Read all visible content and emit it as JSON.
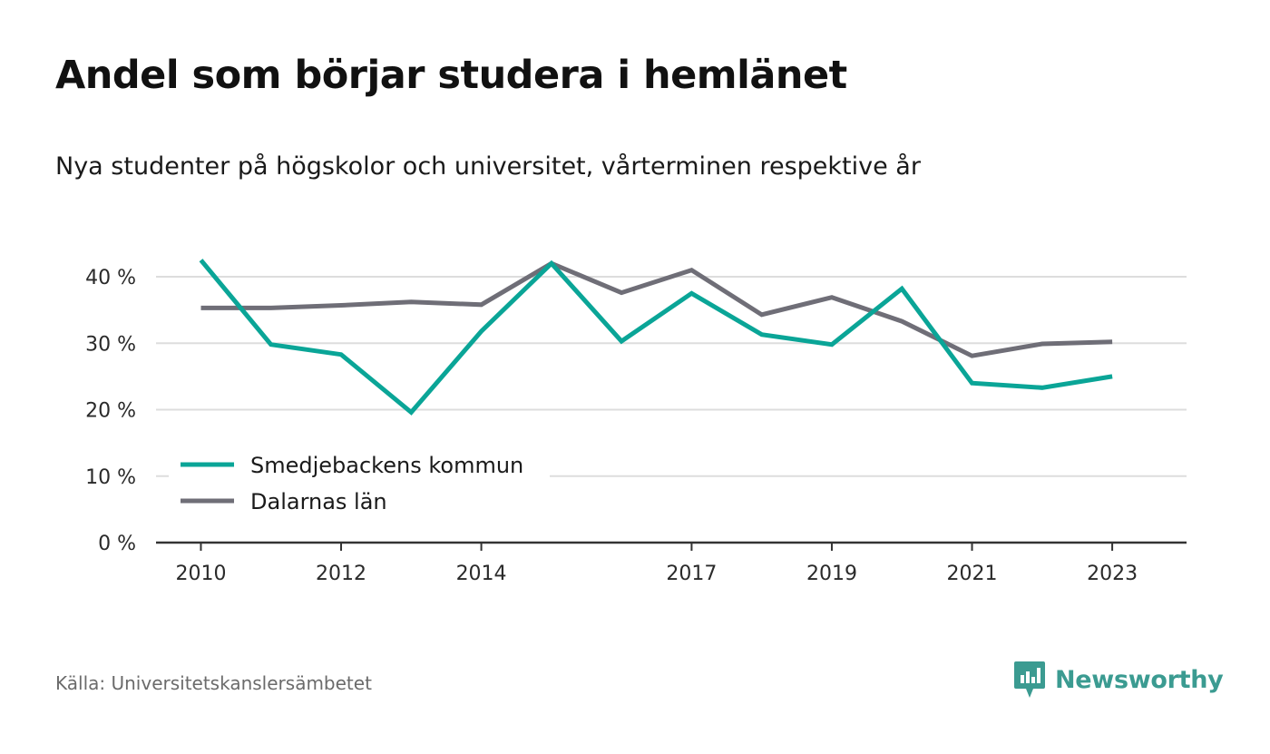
{
  "header": {
    "title": "Andel som börjar studera i hemlänet",
    "subtitle": "Nya studenter på högskolor och universitet, vårterminen respektive år"
  },
  "footer": {
    "source": "Källa: Universitetskanslersämbetet",
    "brand": "Newsworthy",
    "brand_icon": "newsworthy-logo-icon"
  },
  "colors": {
    "series_primary": "#0aa597",
    "series_secondary": "#6f6e77",
    "grid": "#dddddd",
    "axis": "#333333",
    "brand": "#3b9b91"
  },
  "chart_data": {
    "type": "line",
    "x": [
      2010,
      2011,
      2012,
      2013,
      2014,
      2015,
      2016,
      2017,
      2018,
      2019,
      2020,
      2021,
      2022,
      2023
    ],
    "x_tick_labels": [
      "2010",
      "2012",
      "2014",
      "2017",
      "2019",
      "2021",
      "2023"
    ],
    "xlim": [
      2009.36,
      2024.06
    ],
    "y_ticks": [
      0,
      10,
      20,
      30,
      40
    ],
    "y_tick_labels": [
      "0 %",
      "10 %",
      "20 %",
      "30 %",
      "40 %"
    ],
    "ylim": [
      0,
      40
    ],
    "grid": true,
    "legend_position": "bottom-left",
    "series": [
      {
        "name": "Smedjebackens kommun",
        "color": "#0aa597",
        "values": [
          42.5,
          29.8,
          28.3,
          19.6,
          31.8,
          42.0,
          30.3,
          37.5,
          31.3,
          29.8,
          38.2,
          24.0,
          23.3,
          25.0
        ]
      },
      {
        "name": "Dalarnas län",
        "color": "#6f6e77",
        "values": [
          35.3,
          35.3,
          35.7,
          36.2,
          35.8,
          42.0,
          37.6,
          41.0,
          34.3,
          36.9,
          33.3,
          28.1,
          29.9,
          30.2
        ]
      }
    ]
  }
}
